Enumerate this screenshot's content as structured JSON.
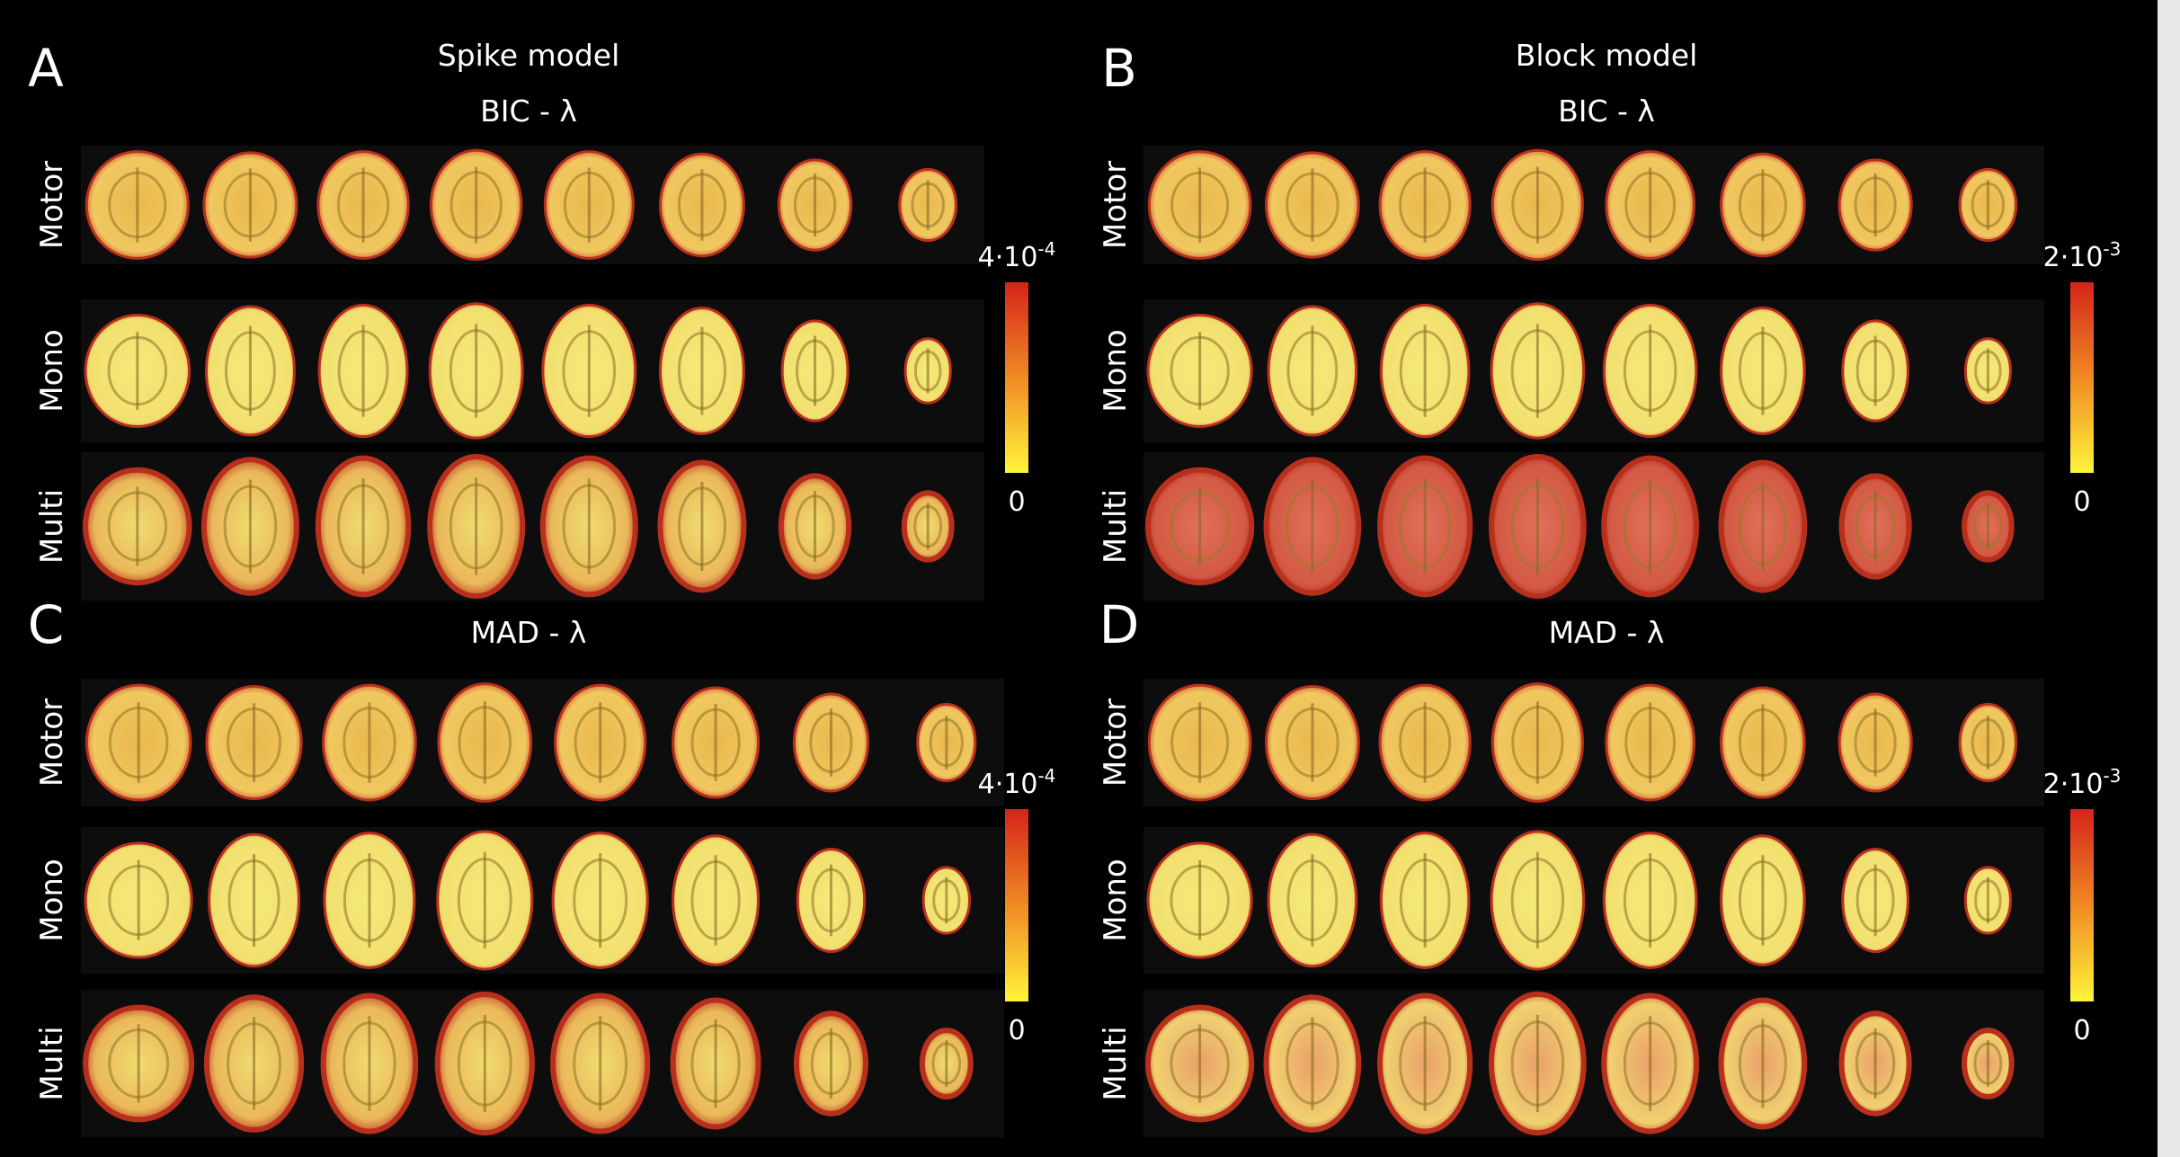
{
  "panels": [
    {
      "letter": "A",
      "model": "Spike model",
      "method": "BIC - λ",
      "rows": [
        "Motor",
        "Mono",
        "Multi"
      ],
      "colorbar": {
        "max": "4·10",
        "max_exponent": "-4",
        "min": "0"
      }
    },
    {
      "letter": "B",
      "model": "Block model",
      "method": "BIC - λ",
      "rows": [
        "Motor",
        "Mono",
        "Multi"
      ],
      "colorbar": {
        "max": "2·10",
        "max_exponent": "-3",
        "min": "0"
      }
    },
    {
      "letter": "C",
      "method": "MAD - λ",
      "rows": [
        "Motor",
        "Mono",
        "Multi"
      ],
      "colorbar": {
        "max": "4·10",
        "max_exponent": "-4",
        "min": "0"
      }
    },
    {
      "letter": "D",
      "method": "MAD - λ",
      "rows": [
        "Motor",
        "Mono",
        "Multi"
      ],
      "colorbar": {
        "max": "2·10",
        "max_exponent": "-3",
        "min": "0"
      }
    }
  ]
}
